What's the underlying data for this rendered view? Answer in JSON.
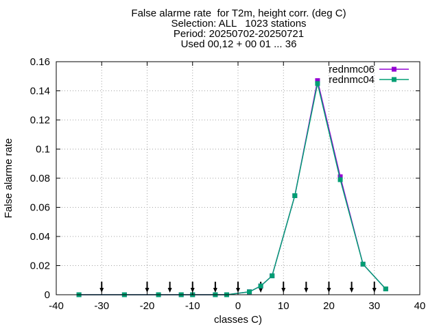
{
  "chart_data": {
    "type": "line",
    "title_lines": [
      "False alarme rate  for T2m, height corr. (deg C)",
      "Selection: ALL   1023 stations",
      "Period: 20250702-20250721",
      "Used 00,12 + 00 01 ... 36"
    ],
    "xlabel": "classes C)",
    "ylabel": "False alarme rate",
    "xlim": [
      -40,
      40
    ],
    "ylim": [
      0,
      0.16
    ],
    "xticks": [
      -40,
      -30,
      -20,
      -10,
      0,
      10,
      20,
      30,
      40
    ],
    "xtick_labels": [
      "-40",
      "-30",
      "-20",
      "-10",
      "0",
      "10",
      "20",
      "30",
      "40"
    ],
    "yticks": [
      0,
      0.02,
      0.04,
      0.06,
      0.08,
      0.1,
      0.12,
      0.14,
      0.16
    ],
    "ytick_labels": [
      "0",
      "0.02",
      "0.04",
      "0.06",
      "0.08",
      "0.1",
      "0.12",
      "0.14",
      "0.16"
    ],
    "grid": true,
    "legend_position": "top-right",
    "series": [
      {
        "name": "rednmc06",
        "color": "#9400d3",
        "x": [
          -35,
          -25,
          -17.5,
          -12.5,
          -10,
          -5,
          -2.5,
          2.5,
          5,
          7.5,
          12.5,
          17.5,
          22.5,
          27.5,
          32.5
        ],
        "y": [
          0,
          0,
          0,
          0,
          0,
          0,
          0,
          0.002,
          0.006,
          0.013,
          0.068,
          0.147,
          0.081,
          0.021,
          0.004
        ]
      },
      {
        "name": "rednmc04",
        "color": "#009e73",
        "x": [
          -35,
          -25,
          -17.5,
          -12.5,
          -10,
          -5,
          -2.5,
          2.5,
          5,
          7.5,
          12.5,
          17.5,
          22.5,
          27.5,
          32.5
        ],
        "y": [
          0,
          0,
          0,
          0,
          0,
          0,
          0,
          0.002,
          0.006,
          0.013,
          0.068,
          0.145,
          0.079,
          0.021,
          0.004
        ]
      }
    ],
    "arrow_markers_x": [
      -30,
      -20,
      -15,
      -10,
      -5,
      0,
      5,
      10,
      15,
      20,
      25,
      30
    ]
  }
}
